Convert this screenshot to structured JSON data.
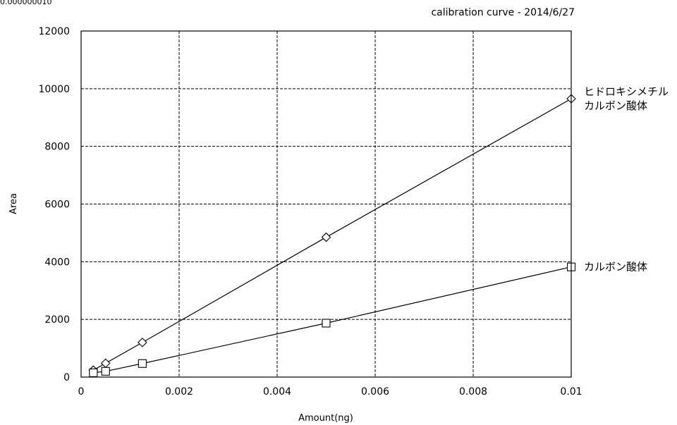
{
  "corner_text": "0.000000010",
  "chart_data": {
    "type": "scatter",
    "title": "calibration curve - 2014/6/27",
    "xlabel": "Amount(ng)",
    "ylabel": "Area",
    "xlim": [
      0,
      0.01
    ],
    "ylim": [
      0,
      12000
    ],
    "x_ticks": [
      "0",
      "0.002",
      "0.004",
      "0.006",
      "0.008",
      "0.01"
    ],
    "y_ticks": [
      "0",
      "2000",
      "4000",
      "6000",
      "8000",
      "10000",
      "12000"
    ],
    "grid": true,
    "series": [
      {
        "name": [
          "ヒドロキシメチル",
          "カルボン酸体"
        ],
        "marker": "diamond",
        "x": [
          0.00025,
          0.0005,
          0.00125,
          0.005,
          0.01
        ],
        "y": [
          240,
          480,
          1200,
          4850,
          9650
        ]
      },
      {
        "name": [
          "カルボン酸体"
        ],
        "marker": "square",
        "x": [
          0.00025,
          0.0005,
          0.00125,
          0.005,
          0.01
        ],
        "y": [
          150,
          200,
          470,
          1870,
          3820
        ]
      }
    ]
  }
}
